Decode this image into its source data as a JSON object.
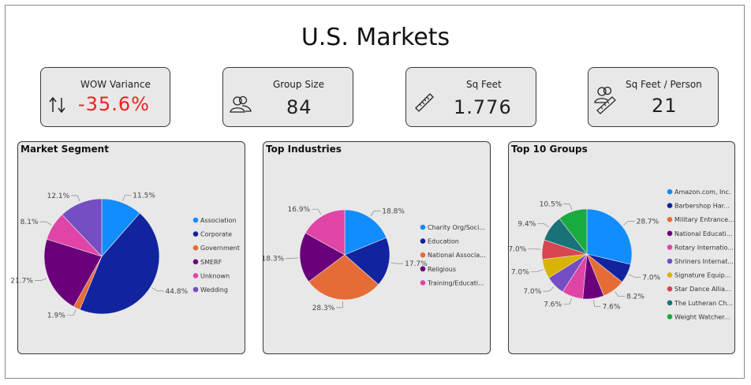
{
  "page": {
    "title": "U.S. Markets"
  },
  "kpis": [
    {
      "label": "WOW Variance",
      "value": "-35.6%",
      "value_color": "#e8231f",
      "icon": "sort-arrows-icon"
    },
    {
      "label": "Group Size",
      "value": "84",
      "value_color": "#222222",
      "icon": "people-icon"
    },
    {
      "label": "Sq Feet",
      "value": "1.776",
      "value_color": "#222222",
      "icon": "ruler-icon"
    },
    {
      "label": "Sq Feet / Person",
      "value": "21",
      "value_color": "#222222",
      "icon": "people-ruler-icon"
    }
  ],
  "chart_data": [
    {
      "type": "pie",
      "title": "Market Segment",
      "legend_position": "right",
      "slices": [
        {
          "name": "Association",
          "value": 11.5,
          "label": "11.5%",
          "color": "#118dff"
        },
        {
          "name": "Corporate",
          "value": 44.8,
          "label": "44.8%",
          "color": "#12239e"
        },
        {
          "name": "Government",
          "value": 1.9,
          "label": "1.9%",
          "color": "#e66c37"
        },
        {
          "name": "SMERF",
          "value": 21.7,
          "label": "21.7%",
          "color": "#6b007b"
        },
        {
          "name": "Unknown",
          "value": 8.1,
          "label": "8.1%",
          "color": "#e044a7"
        },
        {
          "name": "Wedding",
          "value": 12.1,
          "label": "12.1%",
          "color": "#744ec2"
        }
      ]
    },
    {
      "type": "pie",
      "title": "Top Industries",
      "legend_position": "right",
      "slices": [
        {
          "name": "Charity Org/Soci...",
          "value": 18.8,
          "label": "18.8%",
          "color": "#118dff"
        },
        {
          "name": "Education",
          "value": 17.7,
          "label": "17.7%",
          "color": "#12239e"
        },
        {
          "name": "National Associa...",
          "value": 28.3,
          "label": "28.3%",
          "color": "#e66c37"
        },
        {
          "name": "Religious",
          "value": 18.3,
          "label": "18.3%",
          "color": "#6b007b"
        },
        {
          "name": "Training/Educati...",
          "value": 16.9,
          "label": "16.9%",
          "color": "#e044a7"
        }
      ]
    },
    {
      "type": "pie",
      "title": "Top 10 Groups",
      "legend_position": "right",
      "slices": [
        {
          "name": "Amazon.com, Inc.",
          "value": 28.7,
          "label": "28.7%",
          "color": "#118dff"
        },
        {
          "name": "Barbershop Har...",
          "value": 7.0,
          "label": "7.0%",
          "color": "#12239e"
        },
        {
          "name": "Military Entrance...",
          "value": 8.2,
          "label": "8.2%",
          "color": "#e66c37"
        },
        {
          "name": "National Educati...",
          "value": 7.6,
          "label": "7.6%",
          "color": "#6b007b"
        },
        {
          "name": "Rotary Internatio...",
          "value": 7.6,
          "label": "7.6%",
          "color": "#e044a7"
        },
        {
          "name": "Shriners Internat...",
          "value": 7.0,
          "label": "7.0%",
          "color": "#744ec2"
        },
        {
          "name": "Signature Equip...",
          "value": 7.0,
          "label": "7.0%",
          "color": "#d9b300"
        },
        {
          "name": "Star Dance Allia...",
          "value": 7.0,
          "label": "7.0%",
          "color": "#d64550"
        },
        {
          "name": "The Lutheran Ch...",
          "value": 9.4,
          "label": "9.4%",
          "color": "#197278"
        },
        {
          "name": "Weight Watcher...",
          "value": 10.5,
          "label": "10.5%",
          "color": "#1aab40"
        }
      ]
    }
  ]
}
